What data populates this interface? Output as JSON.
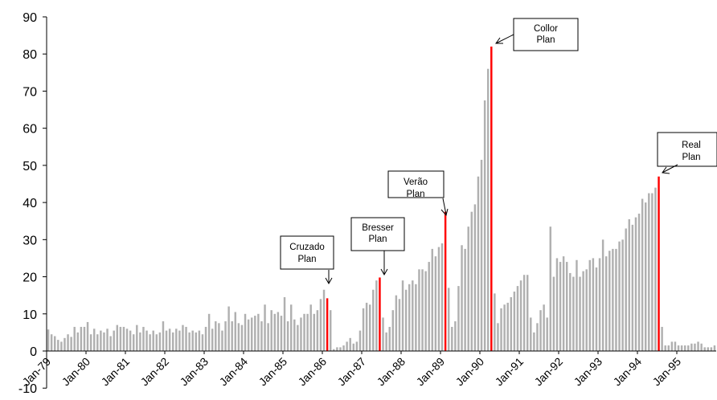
{
  "chart_data": {
    "type": "bar",
    "title": "",
    "xlabel": "",
    "ylabel": "",
    "ylim": [
      -10,
      90
    ],
    "yticks": [
      -10,
      0,
      10,
      20,
      30,
      40,
      50,
      60,
      70,
      80,
      90
    ],
    "start_month": "1979-01",
    "x_tick_labels": [
      "Jan-79",
      "Jan-80",
      "Jan-81",
      "Jan-82",
      "Jan-83",
      "Jan-84",
      "Jan-85",
      "Jan-86",
      "Jan-87",
      "Jan-88",
      "Jan-89",
      "Jan-90",
      "Jan-91",
      "Jan-92",
      "Jan-93",
      "Jan-94",
      "Jan-95"
    ],
    "grid": false,
    "colors": {
      "bar": "#b0b0b0",
      "plan_bar": "#ff0000",
      "axis": "#000000"
    },
    "values": [
      5.8,
      4.5,
      4.0,
      3.0,
      2.5,
      3.5,
      4.5,
      3.8,
      6.5,
      5.0,
      6.5,
      6.5,
      7.8,
      4.5,
      6.0,
      4.5,
      5.5,
      5.0,
      6.0,
      4.0,
      5.5,
      7.0,
      6.5,
      6.5,
      6.0,
      5.5,
      4.5,
      7.0,
      5.0,
      6.5,
      5.5,
      4.5,
      5.5,
      4.5,
      5.0,
      8.0,
      5.5,
      6.0,
      5.0,
      6.0,
      5.5,
      7.0,
      6.5,
      5.0,
      5.5,
      5.0,
      5.5,
      4.5,
      6.5,
      10.0,
      6.0,
      8.0,
      7.5,
      5.5,
      8.0,
      12.0,
      8.0,
      10.5,
      7.5,
      7.0,
      10.0,
      8.5,
      9.0,
      9.5,
      10.0,
      8.0,
      12.5,
      7.5,
      11.0,
      10.0,
      10.5,
      9.5,
      14.5,
      8.0,
      12.5,
      8.5,
      7.0,
      9.0,
      10.0,
      10.0,
      12.5,
      10.0,
      11.0,
      14.0,
      16.5,
      14.2,
      11.0,
      0.5,
      1.0,
      1.0,
      1.5,
      2.5,
      3.5,
      2.0,
      2.5,
      5.5,
      11.5,
      13.0,
      12.5,
      16.5,
      19.0,
      19.8,
      9.0,
      5.0,
      6.5,
      11.0,
      15.0,
      14.0,
      19.0,
      16.5,
      18.0,
      19.0,
      18.0,
      22.0,
      22.0,
      21.5,
      24.0,
      27.5,
      25.5,
      28.0,
      29.0,
      37.5,
      17.0,
      6.5,
      8.0,
      17.5,
      28.5,
      27.5,
      33.5,
      37.5,
      39.5,
      47.0,
      51.5,
      67.5,
      76.0,
      82.0,
      15.5,
      7.5,
      11.5,
      12.5,
      13.0,
      14.5,
      16.0,
      17.5,
      19.0,
      20.5,
      20.5,
      9.0,
      5.0,
      7.5,
      11.0,
      12.5,
      9.0,
      33.5,
      20.0,
      25.0,
      24.0,
      25.5,
      24.0,
      21.0,
      20.0,
      24.5,
      20.0,
      21.5,
      22.0,
      24.5,
      25.0,
      22.5,
      25.0,
      30.0,
      25.5,
      27.0,
      27.5,
      27.5,
      29.5,
      30.0,
      33.0,
      35.5,
      34.0,
      36.0,
      37.0,
      41.0,
      40.0,
      42.5,
      42.5,
      44.0,
      47.0,
      6.5,
      1.5,
      1.5,
      2.5,
      2.5,
      1.5,
      1.5,
      1.5,
      1.5,
      2.0,
      2.0,
      2.5,
      2.0,
      1.0,
      1.0,
      1.0,
      1.5
    ],
    "annotations": [
      {
        "label_lines": [
          "Cruzado",
          "Plan"
        ],
        "month_index": 85
      },
      {
        "label_lines": [
          "Bresser",
          "Plan"
        ],
        "month_index": 101
      },
      {
        "label_lines": [
          "Verão",
          "Plan"
        ],
        "month_index": 121
      },
      {
        "label_lines": [
          "Collor",
          "Plan"
        ],
        "month_index": 135
      },
      {
        "label_lines": [
          "Real",
          "Plan"
        ],
        "month_index": 186
      }
    ]
  }
}
